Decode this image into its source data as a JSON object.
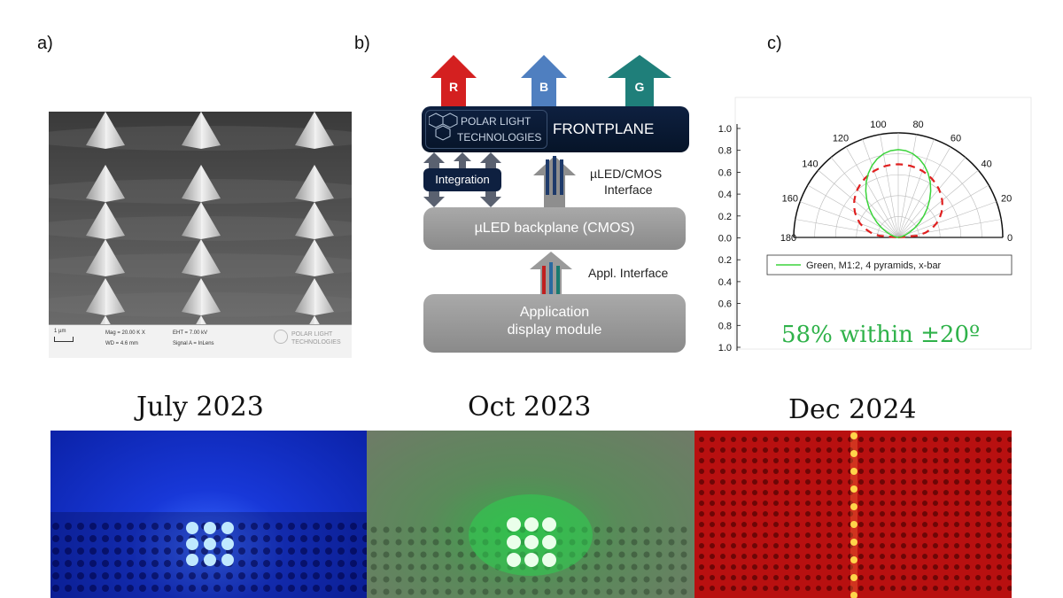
{
  "panel_labels": {
    "a": "a)",
    "b": "b)",
    "c": "c)"
  },
  "sem": {
    "scale_bar": "1 µm",
    "mag": "Mag = 20.00 K X",
    "wd": "WD = 4.6 mm",
    "eht": "EHT = 7.00 kV",
    "signal": "Signal A = InLens",
    "logo_line1": "POLAR LIGHT",
    "logo_line2": "TECHNOLOGIES"
  },
  "diagram": {
    "arrows": [
      "R",
      "B",
      "G"
    ],
    "arrow_colors": [
      "#d42020",
      "#4f7fc0",
      "#1f7f7a"
    ],
    "logo_line1": "POLAR LIGHT",
    "logo_line2": "TECHNOLOGIES",
    "frontplane": "FRONTPLANE",
    "integration": "Integration",
    "interface_line1": "µLED/CMOS",
    "interface_line2": "Interface",
    "backplane": "µLED backplane (CMOS)",
    "appl_interface": "Appl. Interface",
    "module_line1": "Application",
    "module_line2": "display module"
  },
  "polar_chart": {
    "left_ticks": [
      "1.0",
      "0.8",
      "0.6",
      "0.4",
      "0.2",
      "0.0",
      "0.2",
      "0.4",
      "0.6",
      "0.8",
      "1.0"
    ],
    "angle_ticks": [
      "180",
      "160",
      "140",
      "120",
      "100",
      "80",
      "60",
      "40",
      "20",
      "0"
    ],
    "legend": "Green, M1:2, 4 pyramids, x-bar",
    "annotation": "58% within ±20º",
    "green_color": "#3bd43b",
    "red_color": "#e02020"
  },
  "photos": {
    "labels": [
      "July 2023",
      "Oct 2023",
      "Dec 2024"
    ],
    "colors": [
      "#1030d0",
      "#5a8a5a",
      "#c01010"
    ]
  }
}
